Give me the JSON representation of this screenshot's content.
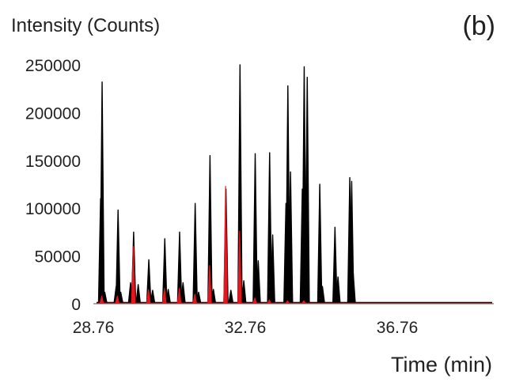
{
  "page": {
    "panel_label": "(b)"
  },
  "chart_data": {
    "type": "line",
    "title": "",
    "xlabel": "Time (min)",
    "ylabel": "Intensity (Counts)",
    "xlim": [
      28.76,
      39.3
    ],
    "ylim": [
      0,
      250000
    ],
    "x_ticks": [
      28.76,
      32.76,
      36.76
    ],
    "x_tick_labels": [
      "28.76",
      "32.76",
      "36.76"
    ],
    "y_ticks": [
      0,
      50000,
      100000,
      150000,
      200000,
      250000
    ],
    "y_tick_labels": [
      "0",
      "50000",
      "100000",
      "150000",
      "200000",
      "250000"
    ],
    "grid": false,
    "legend": "none",
    "series": [
      {
        "color": "#000000",
        "peaks": [
          {
            "x": 28.95,
            "y": 110000
          },
          {
            "x": 28.99,
            "y": 232000
          },
          {
            "x": 29.06,
            "y": 12000
          },
          {
            "x": 29.36,
            "y": 18000
          },
          {
            "x": 29.41,
            "y": 98000
          },
          {
            "x": 29.48,
            "y": 12000
          },
          {
            "x": 29.74,
            "y": 22000
          },
          {
            "x": 29.82,
            "y": 75000
          },
          {
            "x": 29.94,
            "y": 20000
          },
          {
            "x": 30.22,
            "y": 46000
          },
          {
            "x": 30.32,
            "y": 14000
          },
          {
            "x": 30.64,
            "y": 68000
          },
          {
            "x": 30.73,
            "y": 15000
          },
          {
            "x": 31.03,
            "y": 75000
          },
          {
            "x": 31.12,
            "y": 22000
          },
          {
            "x": 31.44,
            "y": 105000
          },
          {
            "x": 31.53,
            "y": 12000
          },
          {
            "x": 31.83,
            "y": 155000
          },
          {
            "x": 31.92,
            "y": 15000
          },
          {
            "x": 32.25,
            "y": 120000
          },
          {
            "x": 32.38,
            "y": 14000
          },
          {
            "x": 32.62,
            "y": 262000
          },
          {
            "x": 32.72,
            "y": 24000
          },
          {
            "x": 33.02,
            "y": 157000
          },
          {
            "x": 33.1,
            "y": 45000
          },
          {
            "x": 33.4,
            "y": 158000
          },
          {
            "x": 33.48,
            "y": 72000
          },
          {
            "x": 33.83,
            "y": 105000
          },
          {
            "x": 33.88,
            "y": 228000
          },
          {
            "x": 33.95,
            "y": 138000
          },
          {
            "x": 34.26,
            "y": 120000
          },
          {
            "x": 34.31,
            "y": 248000
          },
          {
            "x": 34.39,
            "y": 237000
          },
          {
            "x": 34.72,
            "y": 125000
          },
          {
            "x": 34.79,
            "y": 18000
          },
          {
            "x": 35.12,
            "y": 80000
          },
          {
            "x": 35.2,
            "y": 28000
          },
          {
            "x": 35.51,
            "y": 132000
          },
          {
            "x": 35.56,
            "y": 128000
          },
          {
            "x": 35.6,
            "y": 32000
          }
        ]
      },
      {
        "color": "#e8141e",
        "peaks": [
          {
            "x": 28.98,
            "y": 8000
          },
          {
            "x": 29.39,
            "y": 8000
          },
          {
            "x": 29.81,
            "y": 60000
          },
          {
            "x": 30.21,
            "y": 15000
          },
          {
            "x": 30.63,
            "y": 16000
          },
          {
            "x": 31.02,
            "y": 16000
          },
          {
            "x": 31.43,
            "y": 10000
          },
          {
            "x": 31.82,
            "y": 40000
          },
          {
            "x": 32.24,
            "y": 123000
          },
          {
            "x": 32.61,
            "y": 76000
          },
          {
            "x": 33.01,
            "y": 6000
          },
          {
            "x": 33.39,
            "y": 4000
          },
          {
            "x": 33.87,
            "y": 3000
          },
          {
            "x": 34.3,
            "y": 3000
          }
        ]
      }
    ]
  }
}
